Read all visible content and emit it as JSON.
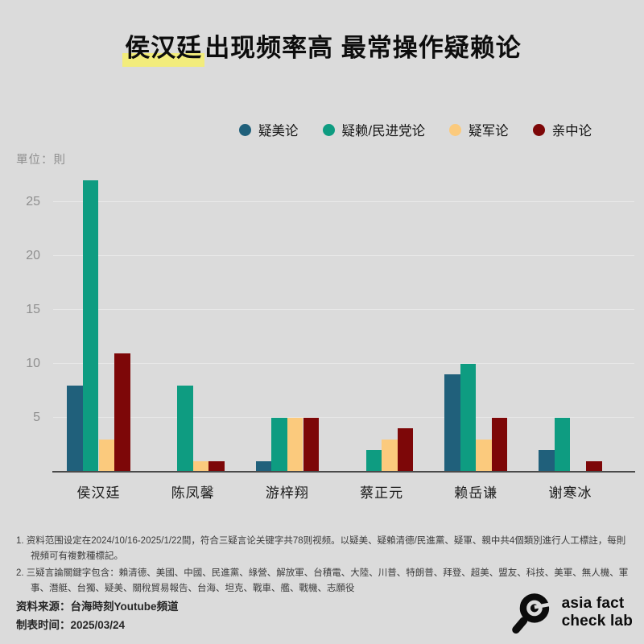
{
  "title": {
    "highlight": "侯汉廷",
    "rest": "出现频率高 最常操作疑赖论",
    "highlight_color": "#f2ec7c"
  },
  "unit_label": "單位：則",
  "legend": [
    {
      "label": "疑美论",
      "color": "#20607b"
    },
    {
      "label": "疑赖/民进党论",
      "color": "#0e9c81"
    },
    {
      "label": "疑军论",
      "color": "#fbca7d"
    },
    {
      "label": "亲中论",
      "color": "#7d0708"
    }
  ],
  "chart_data": {
    "type": "bar",
    "categories": [
      "侯汉廷",
      "陈凤馨",
      "游梓翔",
      "蔡正元",
      "赖岳谦",
      "谢寒冰"
    ],
    "series": [
      {
        "name": "疑美论",
        "color": "#20607b",
        "values": [
          8,
          0,
          1,
          0,
          9,
          2
        ]
      },
      {
        "name": "疑赖/民进党论",
        "color": "#0e9c81",
        "values": [
          27,
          8,
          5,
          2,
          10,
          5
        ]
      },
      {
        "name": "疑军论",
        "color": "#fbca7d",
        "values": [
          3,
          1,
          5,
          3,
          3,
          0
        ]
      },
      {
        "name": "亲中论",
        "color": "#7d0708",
        "values": [
          11,
          1,
          5,
          4,
          5,
          1
        ]
      }
    ],
    "title": "侯汉廷出现频率高 最常操作疑赖论",
    "xlabel": "",
    "ylabel": "單位：則",
    "yticks": [
      5,
      10,
      15,
      20,
      25
    ],
    "ylim": [
      0,
      27.5
    ],
    "grid": true,
    "legend_position": "top"
  },
  "footnotes": [
    "1. 资料范围设定在2024/10/16-2025/1/22間，符合三疑言论关键字共78则视频。以疑美、疑賴清德/民進黨、疑軍、親中共4個類別進行人工標註，每則視頻可有複數種標記。",
    "2. 三疑言論關鍵字包含：賴清德、美國、中國、民進黨、綠營、解放軍、台積電、大陸、川普、特朗普、拜登、超美、盟友、科技、美軍、無人機、軍事、潛艇、台獨、疑美、關稅貿易報告、台海、坦克、戰車、艦、戰機、志願役"
  ],
  "source": {
    "line1": "资料来源：台海時刻Youtube頻道",
    "line2": "制表时间：2025/03/24"
  },
  "logo": {
    "line1": "asia fact",
    "line2": "check lab",
    "icon": "magnifier-icon",
    "color": "#0c0c0c"
  }
}
